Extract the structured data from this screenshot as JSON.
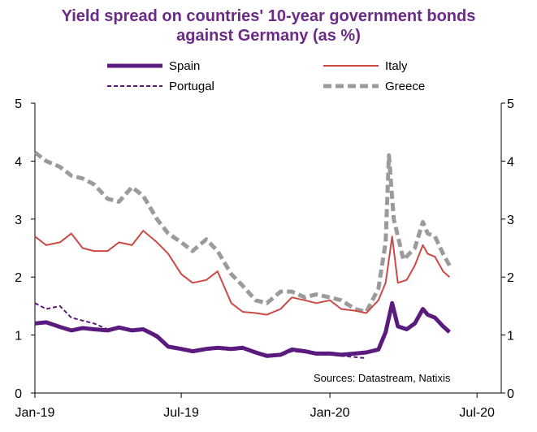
{
  "chart_data": {
    "type": "line",
    "title_line1": "Yield spread on countries' 10-year government bonds",
    "title_line2": "against Germany (as %)",
    "ylim": [
      0,
      5
    ],
    "yticks": [
      "0",
      "1",
      "2",
      "3",
      "4",
      "5"
    ],
    "xlim": [
      "2019-01-01",
      "2020-07-31"
    ],
    "xticks": [
      "Jan-19",
      "Jul-19",
      "Jan-20",
      "Jul-20"
    ],
    "xtick_dates": [
      "2019-01-01",
      "2019-07-01",
      "2020-01-01",
      "2020-07-01"
    ],
    "source": "Sources: Datastream, Natixis",
    "legend_position": "top",
    "grid": false,
    "series": [
      {
        "name": "Spain",
        "color": "#5b1a7e",
        "style": "solid-thick",
        "points": [
          [
            "2019-01-01",
            1.2
          ],
          [
            "2019-01-15",
            1.22
          ],
          [
            "2019-02-01",
            1.14
          ],
          [
            "2019-02-15",
            1.08
          ],
          [
            "2019-03-01",
            1.12
          ],
          [
            "2019-03-15",
            1.1
          ],
          [
            "2019-04-01",
            1.08
          ],
          [
            "2019-04-15",
            1.13
          ],
          [
            "2019-05-01",
            1.08
          ],
          [
            "2019-05-15",
            1.1
          ],
          [
            "2019-06-01",
            0.98
          ],
          [
            "2019-06-15",
            0.8
          ],
          [
            "2019-07-01",
            0.76
          ],
          [
            "2019-07-15",
            0.72
          ],
          [
            "2019-08-01",
            0.76
          ],
          [
            "2019-08-15",
            0.78
          ],
          [
            "2019-09-01",
            0.76
          ],
          [
            "2019-09-15",
            0.78
          ],
          [
            "2019-10-01",
            0.7
          ],
          [
            "2019-10-15",
            0.64
          ],
          [
            "2019-11-01",
            0.66
          ],
          [
            "2019-11-15",
            0.75
          ],
          [
            "2019-12-01",
            0.72
          ],
          [
            "2019-12-15",
            0.68
          ],
          [
            "2020-01-01",
            0.68
          ],
          [
            "2020-01-15",
            0.66
          ],
          [
            "2020-02-01",
            0.68
          ],
          [
            "2020-02-15",
            0.7
          ],
          [
            "2020-03-01",
            0.75
          ],
          [
            "2020-03-10",
            1.05
          ],
          [
            "2020-03-18",
            1.55
          ],
          [
            "2020-03-25",
            1.15
          ],
          [
            "2020-04-05",
            1.1
          ],
          [
            "2020-04-15",
            1.2
          ],
          [
            "2020-04-25",
            1.45
          ],
          [
            "2020-05-01",
            1.35
          ],
          [
            "2020-05-10",
            1.3
          ],
          [
            "2020-05-20",
            1.15
          ],
          [
            "2020-05-28",
            1.05
          ]
        ]
      },
      {
        "name": "Italy",
        "color": "#cc4a46",
        "style": "solid-thin",
        "points": [
          [
            "2019-01-01",
            2.7
          ],
          [
            "2019-01-15",
            2.55
          ],
          [
            "2019-02-01",
            2.6
          ],
          [
            "2019-02-15",
            2.75
          ],
          [
            "2019-03-01",
            2.5
          ],
          [
            "2019-03-15",
            2.45
          ],
          [
            "2019-04-01",
            2.45
          ],
          [
            "2019-04-15",
            2.6
          ],
          [
            "2019-05-01",
            2.55
          ],
          [
            "2019-05-15",
            2.8
          ],
          [
            "2019-06-01",
            2.6
          ],
          [
            "2019-06-15",
            2.4
          ],
          [
            "2019-07-01",
            2.05
          ],
          [
            "2019-07-15",
            1.9
          ],
          [
            "2019-08-01",
            1.95
          ],
          [
            "2019-08-15",
            2.1
          ],
          [
            "2019-09-01",
            1.55
          ],
          [
            "2019-09-15",
            1.4
          ],
          [
            "2019-10-01",
            1.38
          ],
          [
            "2019-10-15",
            1.35
          ],
          [
            "2019-11-01",
            1.45
          ],
          [
            "2019-11-15",
            1.65
          ],
          [
            "2019-12-01",
            1.6
          ],
          [
            "2019-12-15",
            1.55
          ],
          [
            "2020-01-01",
            1.6
          ],
          [
            "2020-01-15",
            1.45
          ],
          [
            "2020-02-01",
            1.42
          ],
          [
            "2020-02-15",
            1.38
          ],
          [
            "2020-03-01",
            1.6
          ],
          [
            "2020-03-10",
            1.9
          ],
          [
            "2020-03-18",
            2.7
          ],
          [
            "2020-03-25",
            1.9
          ],
          [
            "2020-04-05",
            1.95
          ],
          [
            "2020-04-15",
            2.2
          ],
          [
            "2020-04-25",
            2.55
          ],
          [
            "2020-05-01",
            2.4
          ],
          [
            "2020-05-10",
            2.35
          ],
          [
            "2020-05-20",
            2.1
          ],
          [
            "2020-05-28",
            2.0
          ]
        ]
      },
      {
        "name": "Portugal",
        "color": "#5b1a7e",
        "style": "dashed-thin",
        "points": [
          [
            "2019-01-01",
            1.55
          ],
          [
            "2019-01-15",
            1.45
          ],
          [
            "2019-02-01",
            1.5
          ],
          [
            "2019-02-15",
            1.3
          ],
          [
            "2019-03-01",
            1.25
          ],
          [
            "2019-03-15",
            1.2
          ],
          [
            "2019-04-01",
            1.1
          ],
          [
            "2019-04-15",
            1.15
          ],
          [
            "2019-05-01",
            1.08
          ],
          [
            "2019-05-15",
            1.1
          ],
          [
            "2019-06-01",
            0.95
          ],
          [
            "2019-06-15",
            0.78
          ],
          [
            "2019-07-01",
            0.74
          ],
          [
            "2019-07-15",
            0.7
          ],
          [
            "2019-08-01",
            0.74
          ],
          [
            "2019-08-15",
            0.76
          ],
          [
            "2019-09-01",
            0.74
          ],
          [
            "2019-09-15",
            0.76
          ],
          [
            "2019-10-01",
            0.68
          ],
          [
            "2019-10-15",
            0.62
          ],
          [
            "2019-11-01",
            0.64
          ],
          [
            "2019-11-15",
            0.72
          ],
          [
            "2019-12-01",
            0.7
          ],
          [
            "2019-12-15",
            0.66
          ],
          [
            "2020-01-01",
            0.66
          ],
          [
            "2020-01-15",
            0.64
          ],
          [
            "2020-02-01",
            0.62
          ],
          [
            "2020-02-15",
            0.6
          ]
        ]
      },
      {
        "name": "Greece",
        "color": "#9b9b9b",
        "style": "dashed-thick",
        "points": [
          [
            "2019-01-01",
            4.15
          ],
          [
            "2019-01-15",
            4.0
          ],
          [
            "2019-02-01",
            3.9
          ],
          [
            "2019-02-15",
            3.75
          ],
          [
            "2019-03-01",
            3.7
          ],
          [
            "2019-03-15",
            3.6
          ],
          [
            "2019-04-01",
            3.35
          ],
          [
            "2019-04-15",
            3.3
          ],
          [
            "2019-05-01",
            3.55
          ],
          [
            "2019-05-15",
            3.4
          ],
          [
            "2019-06-01",
            3.0
          ],
          [
            "2019-06-15",
            2.75
          ],
          [
            "2019-07-01",
            2.6
          ],
          [
            "2019-07-15",
            2.45
          ],
          [
            "2019-08-01",
            2.65
          ],
          [
            "2019-08-15",
            2.45
          ],
          [
            "2019-09-01",
            2.05
          ],
          [
            "2019-09-15",
            1.85
          ],
          [
            "2019-10-01",
            1.6
          ],
          [
            "2019-10-15",
            1.55
          ],
          [
            "2019-11-01",
            1.75
          ],
          [
            "2019-11-15",
            1.75
          ],
          [
            "2019-12-01",
            1.65
          ],
          [
            "2019-12-15",
            1.7
          ],
          [
            "2020-01-01",
            1.65
          ],
          [
            "2020-01-15",
            1.6
          ],
          [
            "2020-02-01",
            1.45
          ],
          [
            "2020-02-15",
            1.4
          ],
          [
            "2020-03-01",
            1.8
          ],
          [
            "2020-03-10",
            2.6
          ],
          [
            "2020-03-14",
            4.1
          ],
          [
            "2020-03-20",
            3.0
          ],
          [
            "2020-04-01",
            2.3
          ],
          [
            "2020-04-15",
            2.5
          ],
          [
            "2020-04-25",
            2.95
          ],
          [
            "2020-05-01",
            2.75
          ],
          [
            "2020-05-10",
            2.7
          ],
          [
            "2020-05-20",
            2.4
          ],
          [
            "2020-05-28",
            2.2
          ]
        ]
      }
    ]
  }
}
